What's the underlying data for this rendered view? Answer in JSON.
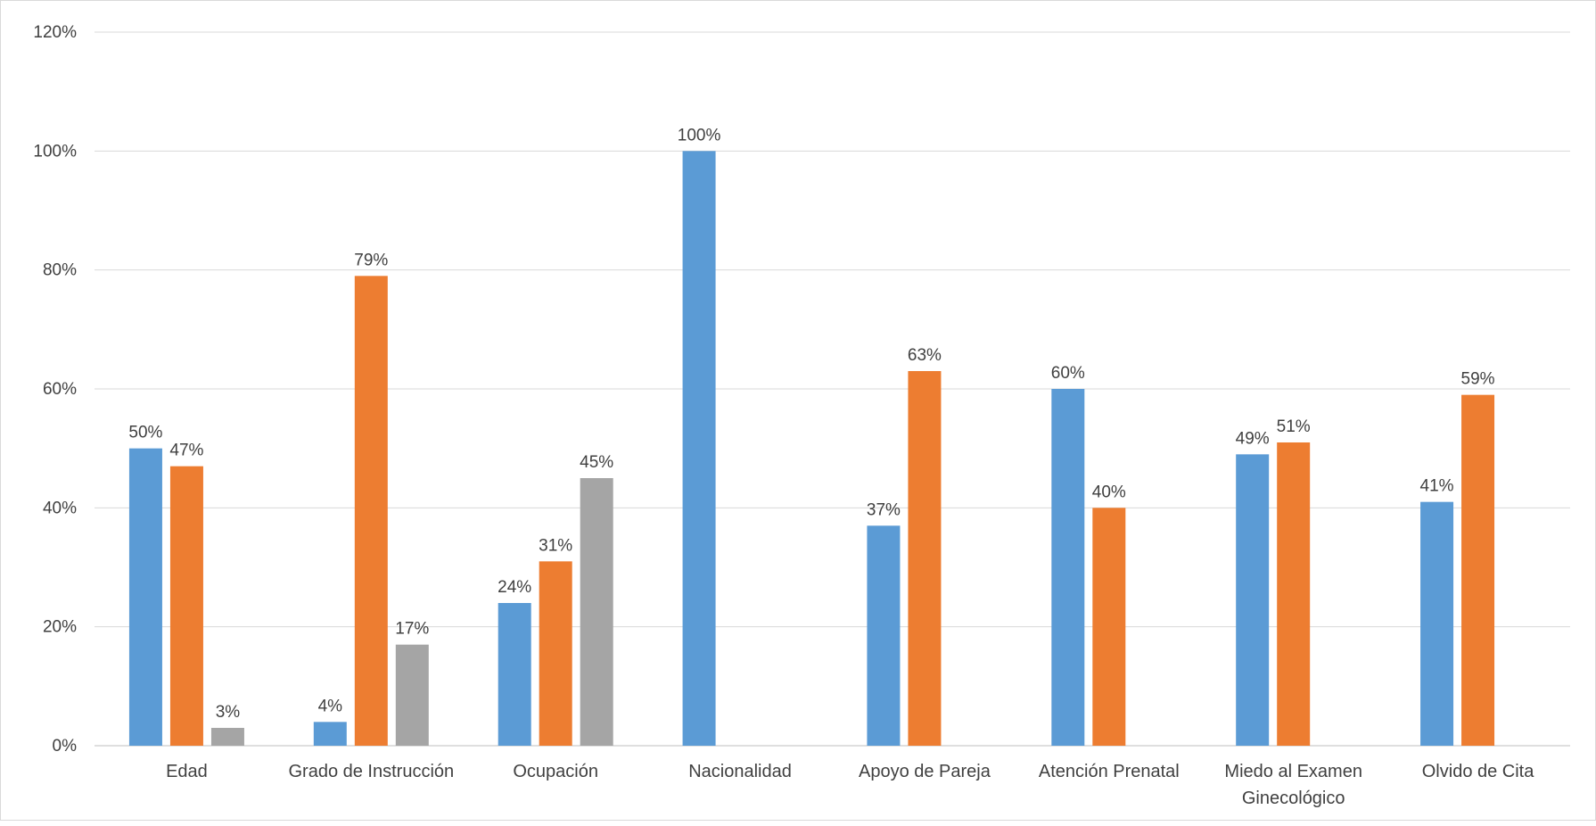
{
  "chart_data": {
    "type": "bar",
    "title": "",
    "xlabel": "",
    "ylabel": "",
    "ylim": [
      0,
      120
    ],
    "yticks": [
      0,
      20,
      40,
      60,
      80,
      100,
      120
    ],
    "ytick_labels": [
      "0%",
      "20%",
      "40%",
      "60%",
      "80%",
      "100%",
      "120%"
    ],
    "grid": true,
    "legend": "none",
    "categories": [
      [
        "Edad"
      ],
      [
        "Grado de Instrucción"
      ],
      [
        "Ocupación"
      ],
      [
        "Nacionalidad"
      ],
      [
        "Apoyo de Pareja"
      ],
      [
        "Atención Prenatal"
      ],
      [
        "Miedo al Examen",
        "Ginecológico"
      ],
      [
        "Olvido de Cita"
      ]
    ],
    "series": [
      {
        "color": "#5b9bd5",
        "values": [
          50,
          4,
          24,
          100,
          37,
          60,
          49,
          41
        ]
      },
      {
        "color": "#ed7d31",
        "values": [
          47,
          79,
          31,
          null,
          63,
          40,
          51,
          59
        ]
      },
      {
        "color": "#a5a5a5",
        "values": [
          3,
          17,
          45,
          null,
          null,
          null,
          null,
          null
        ]
      }
    ],
    "data_label_suffix": "%"
  }
}
